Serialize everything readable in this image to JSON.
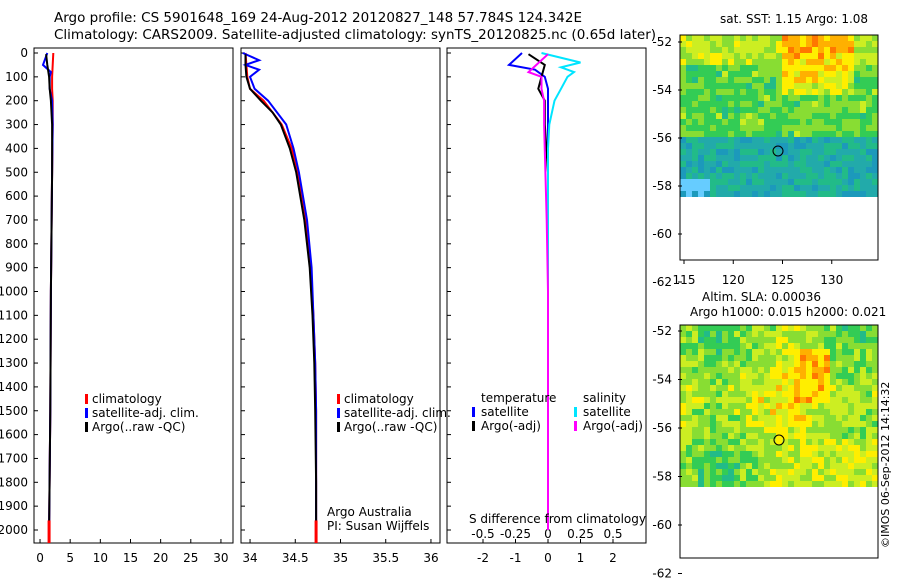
{
  "header": {
    "line1": "Argo profile: CS 5901648_169 24-Aug-2012 20120827_148 57.784S 124.342E",
    "line2": "Climatology: CARS2009. Satellite-adjusted climatology: synTS_20120825.nc (0.65d later)"
  },
  "colors": {
    "climatology": "#ff0000",
    "satellite": "#0000ff",
    "argo": "#000000",
    "cyan": "#00e5ff",
    "magenta": "#ff00ff"
  },
  "depth_ticks": [
    "0",
    "100",
    "200",
    "300",
    "400",
    "500",
    "600",
    "700",
    "800",
    "900",
    "1000",
    "1100",
    "1200",
    "1300",
    "1400",
    "1500",
    "1600",
    "1700",
    "1800",
    "1900",
    "2000"
  ],
  "chart_data": [
    {
      "type": "line",
      "name": "temperature",
      "xticks": [
        "0",
        "5",
        "10",
        "15",
        "20",
        "25",
        "30"
      ],
      "xlim": [
        -1,
        32
      ],
      "ylim": [
        0,
        2050
      ],
      "legend": [
        "climatology",
        "satellite-adj. clim.",
        "Argo(..raw -QC)"
      ],
      "series": [
        {
          "name": "climatology",
          "depth": [
            0,
            50,
            100,
            150,
            200,
            300,
            500,
            1000,
            1500,
            2000,
            2050
          ],
          "values": [
            2.2,
            2.1,
            2.0,
            2.0,
            2.1,
            2.1,
            2.0,
            1.8,
            1.7,
            1.5,
            1.5
          ]
        },
        {
          "name": "satellite-adj. clim.",
          "depth": [
            0,
            50,
            80,
            100,
            150,
            200,
            300,
            500,
            1000,
            1500,
            2000
          ],
          "values": [
            1.2,
            0.5,
            1.8,
            1.6,
            1.6,
            2.0,
            2.1,
            2.0,
            1.8,
            1.7,
            1.5
          ]
        },
        {
          "name": "Argo(..raw -QC)",
          "depth": [
            5,
            50,
            100,
            150,
            200,
            300,
            500,
            1000,
            1500,
            2000
          ],
          "values": [
            1.0,
            1.2,
            1.5,
            1.6,
            1.8,
            2.0,
            2.0,
            1.8,
            1.7,
            1.5
          ]
        }
      ]
    },
    {
      "type": "line",
      "name": "salinity",
      "xticks": [
        "34",
        "34.5",
        "35",
        "35.5",
        "36"
      ],
      "xlim": [
        33.9,
        36.1
      ],
      "ylim": [
        0,
        2050
      ],
      "legend": [
        "climatology",
        "satellite-adj. clim.",
        "Argo(..raw -QC)"
      ],
      "annotation": [
        "Argo Australia",
        "PI: Susan Wijffels"
      ],
      "series": [
        {
          "name": "climatology",
          "depth": [
            0,
            50,
            100,
            150,
            200,
            300,
            400,
            500,
            700,
            900,
            1100,
            1300,
            1500,
            1800,
            2050
          ],
          "values": [
            33.95,
            33.96,
            33.97,
            34.0,
            34.15,
            34.35,
            34.46,
            34.53,
            34.62,
            34.67,
            34.7,
            34.72,
            34.73,
            34.73,
            34.73
          ]
        },
        {
          "name": "satellite-adj. clim.",
          "depth": [
            0,
            30,
            50,
            70,
            100,
            150,
            200,
            300,
            400,
            500,
            700,
            900,
            1100,
            1300,
            1500,
            1800,
            2000
          ],
          "values": [
            33.92,
            34.1,
            33.95,
            34.1,
            34.0,
            34.05,
            34.2,
            34.4,
            34.48,
            34.54,
            34.63,
            34.68,
            34.7,
            34.72,
            34.73,
            34.73,
            34.73
          ]
        },
        {
          "name": "Argo(..raw -QC)",
          "depth": [
            5,
            50,
            100,
            150,
            200,
            250,
            300,
            400,
            500,
            700,
            900,
            1100,
            1300,
            1500,
            1800,
            2000
          ],
          "values": [
            33.95,
            33.95,
            33.96,
            34.0,
            34.12,
            34.25,
            34.34,
            34.44,
            34.51,
            34.6,
            34.66,
            34.69,
            34.71,
            34.72,
            34.73,
            34.73
          ]
        }
      ]
    },
    {
      "type": "line",
      "name": "difference from climatology",
      "xlabel": "S difference from climatology",
      "xticks_T": [
        "-2",
        "-1",
        "0",
        "1",
        "2"
      ],
      "xticks_S": [
        "-0.5",
        "-0.25",
        "0",
        "0.25",
        "0.5"
      ],
      "legend_T_title": "temperature",
      "legend_S_title": "salinity",
      "legend": [
        "satellite",
        "Argo(-adj)"
      ],
      "series": [
        {
          "name": "T satellite",
          "depth": [
            0,
            50,
            70,
            100,
            150,
            200,
            300,
            500,
            1000,
            1500,
            2000
          ],
          "values": [
            -0.8,
            -1.2,
            -0.4,
            -0.1,
            0.0,
            0.0,
            0.0,
            0.0,
            0.0,
            0.0,
            0.0
          ]
        },
        {
          "name": "T Argo(-adj)",
          "depth": [
            5,
            50,
            100,
            150,
            200,
            300,
            500,
            1000,
            1500,
            2000
          ],
          "values": [
            -0.6,
            -0.1,
            -0.2,
            -0.3,
            -0.1,
            -0.1,
            0.0,
            0.0,
            0.0,
            0.0
          ]
        },
        {
          "name": "S satellite",
          "depth": [
            0,
            40,
            60,
            80,
            100,
            150,
            200,
            300,
            400,
            600,
            1000,
            1500,
            2000
          ],
          "values": [
            -0.05,
            0.25,
            0.1,
            0.2,
            0.15,
            0.1,
            0.05,
            0.01,
            0.0,
            0.0,
            0.0,
            0.0,
            0.0
          ]
        },
        {
          "name": "S Argo(-adj)",
          "depth": [
            5,
            80,
            100,
            120,
            150,
            200,
            300,
            500,
            700,
            1000,
            1500,
            2000
          ],
          "values": [
            0.0,
            -0.15,
            -0.05,
            -0.05,
            -0.05,
            -0.03,
            -0.03,
            -0.02,
            -0.01,
            0.0,
            0.0,
            0.0
          ]
        }
      ]
    },
    {
      "type": "heatmap",
      "name": "sst map",
      "title": "sat. SST: 1.15 Argo: 1.08",
      "xticks": [
        "115",
        "120",
        "125",
        "130"
      ],
      "yticks": [
        "-52",
        "-54",
        "-56",
        "-58",
        "-60",
        "-62"
      ],
      "marker": {
        "lon": 124.342,
        "lat": -57.784
      }
    },
    {
      "type": "heatmap",
      "name": "sla map",
      "title1": "Altim. SLA: 0.00036",
      "title2": "Argo h1000: 0.015 h2000: 0.021",
      "yticks": [
        "-52",
        "-54",
        "-56",
        "-58",
        "-60",
        "-62"
      ],
      "marker": {
        "lon": 124.342,
        "lat": -57.784
      }
    }
  ],
  "footer": {
    "stamp": "©IMOS 06-Sep-2012 14:14:32"
  }
}
